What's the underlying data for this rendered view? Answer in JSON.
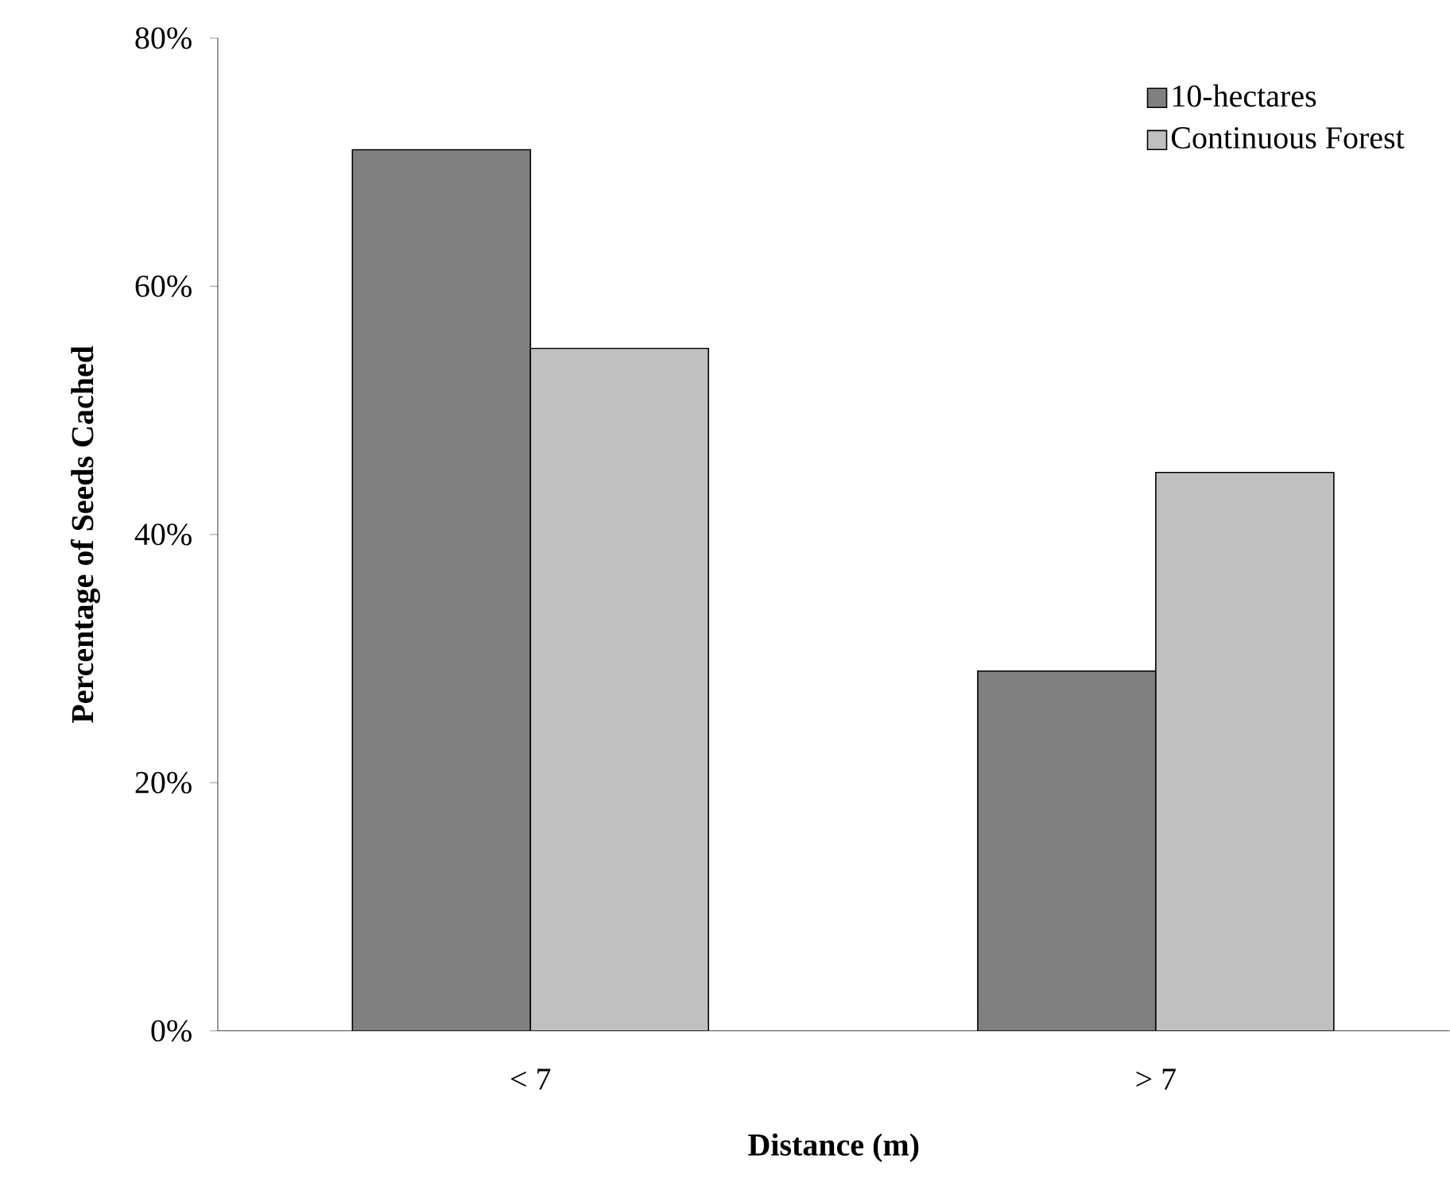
{
  "chart_data": {
    "type": "bar",
    "xlabel": "Distance (m)",
    "ylabel": "Percentage of Seeds Cached",
    "categories": [
      "< 7",
      "> 7"
    ],
    "series": [
      {
        "name": "10-hectares",
        "color": "#808080",
        "values": [
          71,
          29
        ]
      },
      {
        "name": "Continuous Forest",
        "color": "#c0c0c0",
        "values": [
          55,
          45
        ]
      }
    ],
    "ylim": [
      0,
      80
    ],
    "yticks": [
      {
        "value": 0,
        "label": "0%"
      },
      {
        "value": 20,
        "label": "20%"
      },
      {
        "value": 40,
        "label": "40%"
      },
      {
        "value": 60,
        "label": "60%"
      },
      {
        "value": 80,
        "label": "80%"
      }
    ],
    "grid": false,
    "legend": "top right"
  }
}
